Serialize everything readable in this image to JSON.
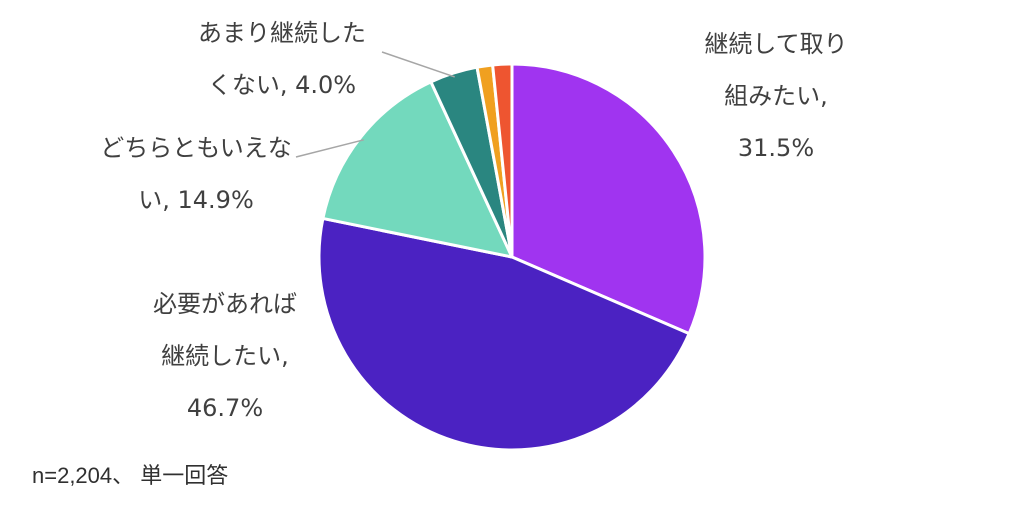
{
  "chart_data": {
    "type": "pie",
    "slices": [
      {
        "label": "継続して取り組みたい",
        "label_lines": [
          "継続して取り",
          "組みたい,",
          "31.5%"
        ],
        "value": 31.5,
        "color": "#A034F0"
      },
      {
        "label": "必要があれば継続したい",
        "label_lines": [
          "必要があれば",
          "継続したい,",
          "46.7%"
        ],
        "value": 46.7,
        "color": "#4B22C2"
      },
      {
        "label": "どちらともいえない",
        "label_lines": [
          "どちらともいえな",
          "い, 14.9%"
        ],
        "value": 14.9,
        "color": "#73D9BD"
      },
      {
        "label": "あまり継続したくない",
        "label_lines": [
          "あまり継続した",
          "くない, 4.0%"
        ],
        "value": 4.0,
        "color": "#2A8680"
      },
      {
        "label": "",
        "value": 1.3,
        "color": "#F0A020"
      },
      {
        "label": "",
        "value": 1.6,
        "color": "#EE5530"
      }
    ]
  },
  "footnote": "n=2,204、 単一回答"
}
